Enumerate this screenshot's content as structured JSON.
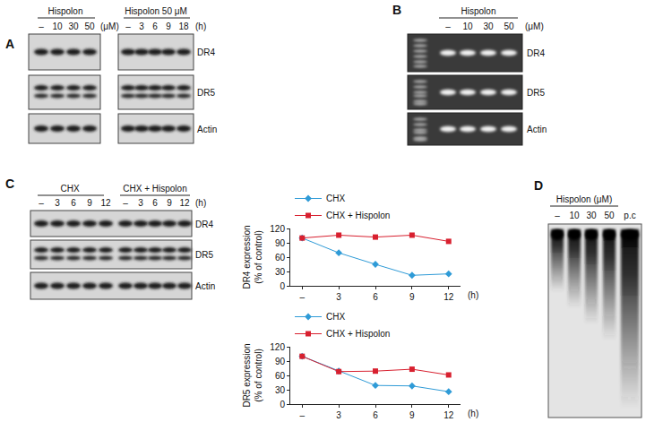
{
  "panels": {
    "A": {
      "letter": "A",
      "rows": [
        "DR4",
        "DR5",
        "Actin"
      ],
      "blots": [
        {
          "header": "Hispolon",
          "lanes": [
            "–",
            "10",
            "30",
            "50"
          ],
          "unit": "(μM)"
        },
        {
          "header": "Hispolon 50 μM",
          "lanes": [
            "–",
            "3",
            "6",
            "9",
            "18"
          ],
          "unit": "(h)"
        }
      ]
    },
    "B": {
      "letter": "B",
      "header": "Hispolon",
      "lanes": [
        "–",
        "10",
        "30",
        "50"
      ],
      "unit": "(μM)",
      "rows": [
        "DR4",
        "DR5",
        "Actin"
      ]
    },
    "C": {
      "letter": "C",
      "groups": [
        {
          "header": "CHX",
          "lanes": [
            "–",
            "3",
            "6",
            "9",
            "12"
          ]
        },
        {
          "header": "CHX + Hispolon",
          "lanes": [
            "–",
            "3",
            "6",
            "9",
            "12"
          ]
        }
      ],
      "unit": "(h)",
      "rows": [
        "DR4",
        "DR5",
        "Actin"
      ]
    },
    "D": {
      "letter": "D",
      "header": "Hispolon (μM)",
      "lanes": [
        "–",
        "10",
        "30",
        "50",
        "p.c"
      ]
    }
  },
  "chart_data": [
    {
      "type": "line",
      "categories": [
        "–",
        "3",
        "6",
        "9",
        "12"
      ],
      "xlabel": "(h)",
      "ylabel": "DR4 expression (% of control)",
      "ylim": [
        0,
        120
      ],
      "yticks": [
        0,
        30,
        60,
        90,
        120
      ],
      "grid": false,
      "legend": "top left",
      "series": [
        {
          "name": "CHX",
          "color": "#2f9bd7",
          "marker": "diamond",
          "values": [
            100,
            69,
            45,
            22,
            25
          ]
        },
        {
          "name": "CHX + Hispolon",
          "color": "#d8202f",
          "marker": "square",
          "values": [
            100,
            106,
            102,
            106,
            93
          ]
        }
      ]
    },
    {
      "type": "line",
      "categories": [
        "–",
        "3",
        "6",
        "9",
        "12"
      ],
      "xlabel": "(h)",
      "ylabel": "DR5 expression (% of control)",
      "ylim": [
        0,
        120
      ],
      "yticks": [
        0,
        30,
        60,
        90,
        120
      ],
      "grid": false,
      "legend": "top left",
      "series": [
        {
          "name": "CHX",
          "color": "#2f9bd7",
          "marker": "diamond",
          "values": [
            100,
            69,
            39,
            38,
            26
          ]
        },
        {
          "name": "CHX + Hispolon",
          "color": "#d8202f",
          "marker": "square",
          "values": [
            100,
            68,
            69,
            73,
            61
          ]
        }
      ]
    }
  ]
}
